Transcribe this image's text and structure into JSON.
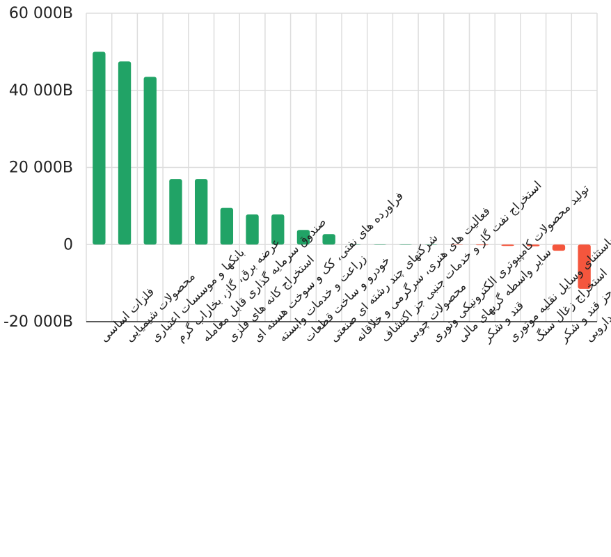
{
  "chart_data": {
    "type": "bar",
    "title": "",
    "xlabel": "",
    "ylabel": "",
    "ylim": [
      -20000,
      60000
    ],
    "yticks": [
      {
        "value": 60000,
        "label": "60 000B"
      },
      {
        "value": 40000,
        "label": "40 000B"
      },
      {
        "value": 20000,
        "label": "20 000B"
      },
      {
        "value": 0,
        "label": "0"
      },
      {
        "value": -20000,
        "label": "-20 000B"
      }
    ],
    "grid": true,
    "legend": "none",
    "colors": {
      "positive": "#21a366",
      "negative": "#f4563d"
    },
    "categories": [
      "فلزات اساسی",
      "محصولات شیمیایی",
      "بانکها و موسسات اعتباری",
      "عرضه برق، گاز، بخاراب گرم",
      "صندوق سرمایه گذاری قابل معامله",
      "استخراج کانه های فلزی",
      "فراورده های نفتی، کک و سوخت هسته ای",
      "زراعت و خدمات وابسته",
      "خودرو و ساخت قطعات",
      "شرکتهای چند رشته ای صنعتی",
      "فعالیت های هنری، سرگرمی و خلاقانه",
      "استخراج نفت گاز و خدمات جنبی جز اکتشاف",
      "محصولات چوبی",
      "تولید محصولات کامپیوتری الکترونیکی ونوری",
      "سایر واسطه گریهای مالی",
      "قند و شکر",
      "خرده فروشی،باستثنای وسایل نقلیه موتوری",
      "استخراج زغال سنگ",
      "محصولات غذایی و آشامیدنی به جز قند و شکر",
      "مواد و محصولات دارویی"
    ],
    "values": [
      50000,
      47500,
      43500,
      17000,
      17000,
      9500,
      7800,
      7800,
      3800,
      2700,
      0,
      0,
      0,
      0,
      -100,
      -150,
      -350,
      -450,
      -1600,
      -11500
    ]
  }
}
